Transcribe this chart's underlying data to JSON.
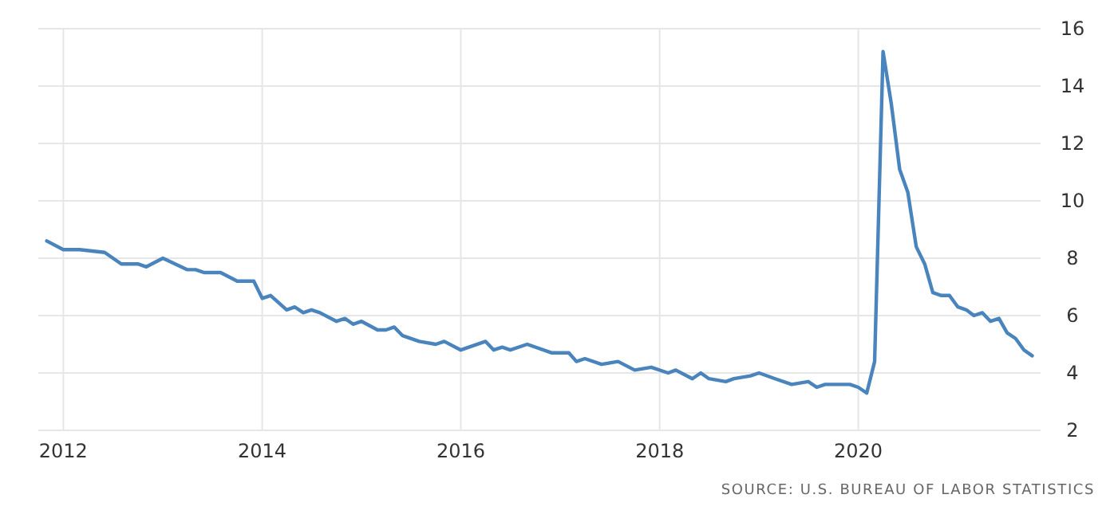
{
  "chart_data": {
    "type": "line",
    "xlim": [
      "2011-10",
      "2021-11"
    ],
    "ylim": [
      2,
      16
    ],
    "yticks": [
      2,
      4,
      6,
      8,
      10,
      12,
      14,
      16
    ],
    "xticks": [
      "2012",
      "2014",
      "2016",
      "2018",
      "2020"
    ],
    "grid": true,
    "marker": "none",
    "line_style": "solid",
    "annotations": [
      "SOURCE: U.S. BUREAU OF LABOR STATISTICS"
    ],
    "series": [
      {
        "color": "#4a84bd",
        "x": [
          "2011-11",
          "2012-01",
          "2012-03",
          "2012-06",
          "2012-08",
          "2012-10",
          "2012-11",
          "2013-01",
          "2013-04",
          "2013-05",
          "2013-06",
          "2013-08",
          "2013-10",
          "2013-12",
          "2014-01",
          "2014-02",
          "2014-04",
          "2014-05",
          "2014-06",
          "2014-07",
          "2014-08",
          "2014-10",
          "2014-11",
          "2014-12",
          "2015-01",
          "2015-03",
          "2015-04",
          "2015-05",
          "2015-06",
          "2015-08",
          "2015-10",
          "2015-11",
          "2016-01",
          "2016-04",
          "2016-05",
          "2016-06",
          "2016-07",
          "2016-09",
          "2016-12",
          "2017-02",
          "2017-03",
          "2017-04",
          "2017-06",
          "2017-08",
          "2017-10",
          "2017-12",
          "2018-02",
          "2018-03",
          "2018-05",
          "2018-06",
          "2018-07",
          "2018-09",
          "2018-10",
          "2018-12",
          "2019-01",
          "2019-03",
          "2019-05",
          "2019-07",
          "2019-08",
          "2019-09",
          "2019-12",
          "2020-01",
          "2020-02",
          "2020-03",
          "2020-04",
          "2020-05",
          "2020-06",
          "2020-07",
          "2020-08",
          "2020-09",
          "2020-10",
          "2020-11",
          "2020-12",
          "2021-01",
          "2021-02",
          "2021-03",
          "2021-04",
          "2021-05",
          "2021-06",
          "2021-07",
          "2021-08",
          "2021-09",
          "2021-10"
        ],
        "values": [
          8.6,
          8.3,
          8.3,
          8.2,
          7.8,
          7.8,
          7.7,
          8.0,
          7.6,
          7.6,
          7.5,
          7.5,
          7.2,
          7.2,
          6.6,
          6.7,
          6.2,
          6.3,
          6.1,
          6.2,
          6.1,
          5.8,
          5.9,
          5.7,
          5.8,
          5.5,
          5.5,
          5.6,
          5.3,
          5.1,
          5.0,
          5.1,
          4.8,
          5.1,
          4.8,
          4.9,
          4.8,
          5.0,
          4.7,
          4.7,
          4.4,
          4.5,
          4.3,
          4.4,
          4.1,
          4.2,
          4.0,
          4.1,
          3.8,
          4.0,
          3.8,
          3.7,
          3.8,
          3.9,
          4.0,
          3.8,
          3.6,
          3.7,
          3.5,
          3.6,
          3.6,
          3.5,
          3.3,
          4.4,
          15.2,
          13.4,
          11.1,
          10.3,
          8.4,
          7.8,
          6.8,
          6.7,
          6.7,
          6.3,
          6.2,
          6.0,
          6.1,
          5.8,
          5.9,
          5.4,
          5.2,
          4.8,
          4.6
        ]
      }
    ]
  }
}
